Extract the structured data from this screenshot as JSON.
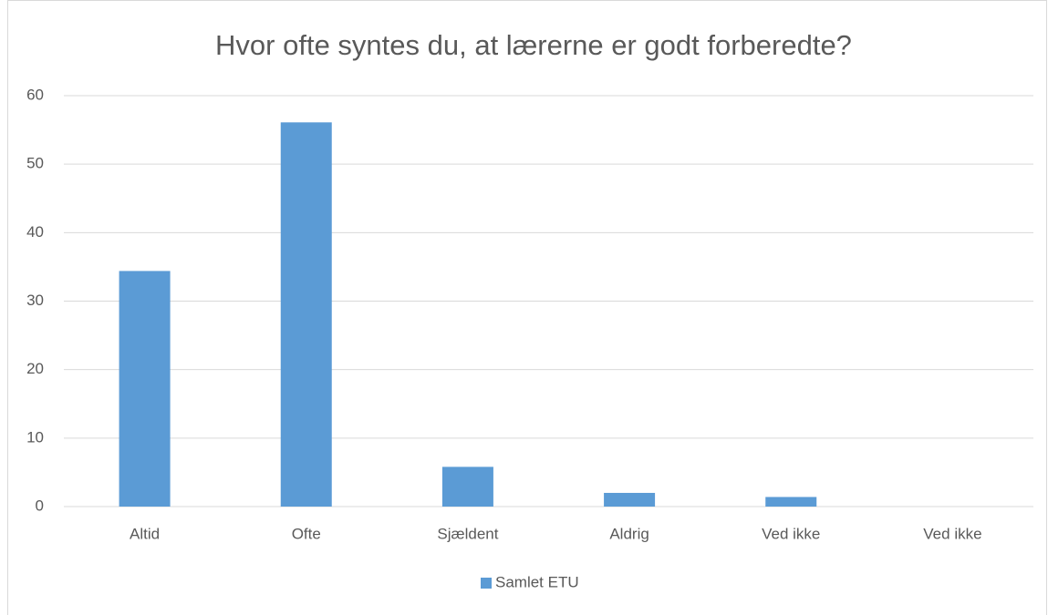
{
  "chart_data": {
    "type": "bar",
    "title": "Hvor ofte syntes du, at lærerne er godt forberedte?",
    "categories": [
      "Altid",
      "Ofte",
      "Sjældent",
      "Aldrig",
      "Ved ikke",
      "Ved ikke"
    ],
    "series": [
      {
        "name": "Samlet ETU",
        "color": "#5b9bd5",
        "values": [
          34.4,
          56.1,
          5.8,
          2.0,
          1.4,
          0
        ]
      }
    ],
    "ylim": [
      0,
      60
    ],
    "yticks": [
      0,
      10,
      20,
      30,
      40,
      50,
      60
    ],
    "grid": true,
    "legend": "bottom"
  }
}
